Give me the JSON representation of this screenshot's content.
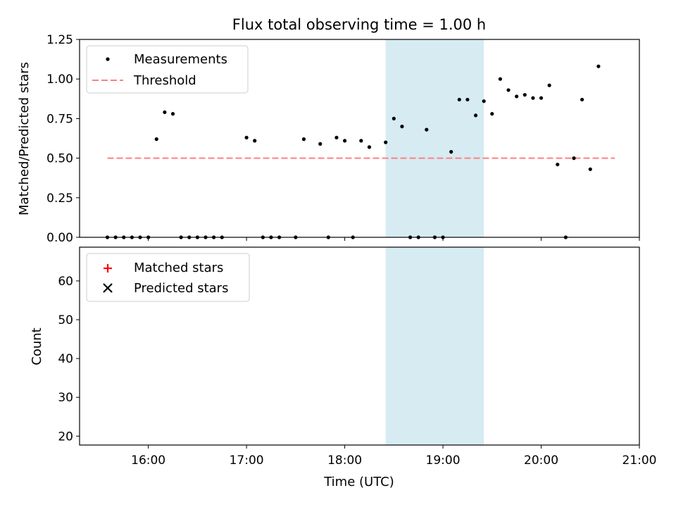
{
  "chart_data": [
    {
      "type": "scatter",
      "title": "Flux total observing time = 1.00 h",
      "ylabel": "Matched/Predicted stars",
      "xlabel": "",
      "xlim": [
        "15:18",
        "21:00"
      ],
      "ylim": [
        0,
        1.25
      ],
      "yticks": [
        0.0,
        0.25,
        0.5,
        0.75,
        1.0,
        1.25
      ],
      "ytick_labels": [
        "0.00",
        "0.25",
        "0.50",
        "0.75",
        "1.00",
        "1.25"
      ],
      "highlight_span": [
        "18:25",
        "19:25"
      ],
      "legend_position": "upper-left",
      "series": [
        {
          "name": "Measurements",
          "marker": "dot",
          "color": "#000000",
          "x": [
            "15:35",
            "15:40",
            "15:45",
            "15:50",
            "15:55",
            "16:00",
            "16:05",
            "16:10",
            "16:15",
            "16:20",
            "16:25",
            "16:30",
            "16:35",
            "16:40",
            "16:45",
            "17:00",
            "17:05",
            "17:10",
            "17:15",
            "17:20",
            "17:30",
            "17:35",
            "17:45",
            "17:50",
            "17:55",
            "18:00",
            "18:05",
            "18:10",
            "18:15",
            "18:25",
            "18:30",
            "18:35",
            "18:40",
            "18:45",
            "18:50",
            "18:55",
            "19:00",
            "19:05",
            "19:10",
            "19:15",
            "19:20",
            "19:25",
            "19:30",
            "19:35",
            "19:40",
            "19:45",
            "19:50",
            "19:55",
            "20:00",
            "20:05",
            "20:10",
            "20:15",
            "20:20",
            "20:25",
            "20:30",
            "20:35"
          ],
          "y": [
            0,
            0,
            0,
            0,
            0,
            0,
            0.62,
            0.79,
            0.78,
            0,
            0,
            0,
            0,
            0,
            0,
            0.63,
            0.61,
            0,
            0,
            0,
            0,
            0.62,
            0.59,
            0,
            0.63,
            0.61,
            0,
            0.61,
            0.57,
            0.6,
            0.75,
            0.7,
            0,
            0,
            0.68,
            0,
            0,
            0.54,
            0.87,
            0.87,
            0.77,
            0.86,
            0.78,
            1.0,
            0.93,
            0.89,
            0.9,
            0.88,
            0.88,
            0.96,
            0.46,
            0,
            0.5,
            0.87,
            0.43,
            1.08
          ]
        },
        {
          "name": "Threshold",
          "marker": "dashed-line",
          "color": "#ff7f7f",
          "x": [
            "15:35",
            "20:45"
          ],
          "y": [
            0.5,
            0.5
          ]
        }
      ]
    },
    {
      "type": "scatter",
      "title": "",
      "xlabel": "Time (UTC)",
      "ylabel": "Count",
      "xlim": [
        "15:18",
        "21:00"
      ],
      "ylim": [
        17.7,
        68.7
      ],
      "xticks": [
        "16:00",
        "17:00",
        "18:00",
        "19:00",
        "20:00",
        "21:00"
      ],
      "yticks": [
        20,
        30,
        40,
        50,
        60
      ],
      "highlight_span": [
        "18:25",
        "19:25"
      ],
      "legend_position": "upper-left",
      "series": [
        {
          "name": "Matched stars",
          "marker": "plus",
          "color": "#ff0000",
          "x": [],
          "y": []
        },
        {
          "name": "Predicted stars",
          "marker": "x",
          "color": "#000000",
          "x": [],
          "y": []
        }
      ]
    }
  ]
}
